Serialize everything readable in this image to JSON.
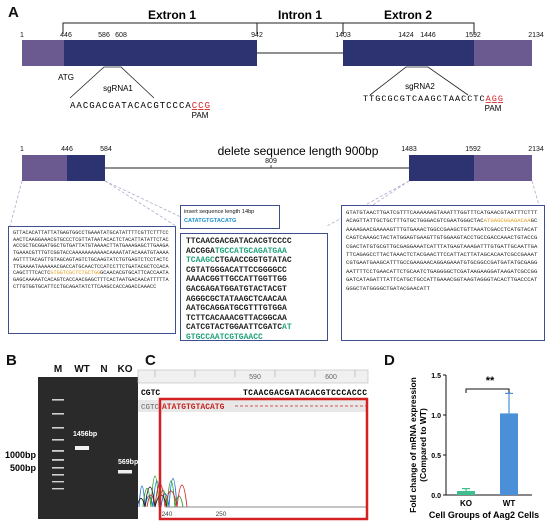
{
  "panels": {
    "a": "A",
    "b": "B",
    "c": "C",
    "d": "D"
  },
  "gene": {
    "exon1": "Extron 1",
    "intron1": "Intron 1",
    "exon2": "Extron 2",
    "ticks": [
      "1",
      "446",
      "586",
      "608",
      "942",
      "1403",
      "1424",
      "1446",
      "1592",
      "2134"
    ],
    "atg": "ATG",
    "sgrna1": {
      "name": "sgRNA1",
      "seq": "AACGACGATACACGTCCCA",
      "pam_seq": "CCG",
      "pam": "PAM"
    },
    "sgrna2": {
      "name": "sgRNA2",
      "seq": "TTGCGCGTCAAGCTAACCTC",
      "pam_seq": "AGG",
      "pam": "PAM"
    }
  },
  "deletion": {
    "label": "delete sequence length 900bp",
    "ticks": [
      "1",
      "446",
      "584",
      "809",
      "1483",
      "1592",
      "2134"
    ],
    "insert_label": "insert sequence length 14bp",
    "insert_seq": "CATATGTGTACATG"
  },
  "seq_left": {
    "text": "GTTACACATTATTATGAGTGGCCTGAAATATGCATATTTTCGTTCTTTCCAACTCAAGGAAACGTGCCCTCGTTATAATACACTCTACATTATATTCTACACCGCTGCGGATGGCTGTGATTATGTAAAACTTATGAAAGAGCTTGAAGATGAAACGTTTGTCGGTACCAAAAAAAAAAACAAAATATACAAATGTAAAAAGTTTTACAGTTGTAGCAGTAGTCTGCAAGTATCTGTGAGTCTCCTACTCTTGAAAATAAAAAACGACCATGCAACTCCATCCTTCTGATACGCTCCACACAGCTTTCACTC",
    "orange": "GTGGTCGCTCTGCTGG",
    "rest": "GCAACACGTGCATTCACCAATAGAGCAAAAATCACAGTCACCAACGAGCTTTCACTAATGACAACATTTTTACTTGTGGTGCATTCCTGCAGATATCTTCAAGCCACCAGACCAAACC"
  },
  "seq_mid": {
    "l1": "TTCAACGACGATACACGTCCCC",
    "l2a": "ACCGGA",
    "l2b": "TGCCATGCAGATGAA",
    "l3a": "TCAAGC",
    "l3b": "CTGAACCGGTGTATAC",
    "l4": "CGTATGGGACATTCCGGGGCC",
    "l5": "AAAACGGTTGCCATTGGTTGG",
    "l6": "GACGAGATGGATGTACTACGT",
    "l7": "AGGGCGCTATAAGCTCAACAA",
    "l8": "AATGCAGGATGCGTTTGTGGA",
    "l9": "TCTTCACAAACGTTACGGCAA",
    "l10a": "CATCGTACTGGAATTCGATC",
    "l10b": "AT",
    "l11": "GTGCCAATCGTGAACC"
  },
  "seq_right": {
    "pre": "GTATGTAACTTGATCGTTTCAAAAAAGTAAATTTGGTTTCATGAACGTAATTTCTTTACAGTTATTGCTGCTTTGTGCTGGGACGTCGAATGGGCTAC",
    "orange": "ATGAGCGGAGACAA",
    "post": "GCAAAAGAACGAAAAGTTTGTGAAACTGGCCGAAGCTGTTAAATCGACCTCATGTACATCAGTCAAAGCTACTATGGAGTGAAGTTGTGGAAGTACCTGCCGACCAAACTGTACCGCGACTATGTGCGTTGCGAGGAAATCATTTATGAGTAAAGATTTGTGATTGCAATTGATTCAGAGCCTTACTAAACTCTACGAACTTCCATTACTTATAGCACAATCGCCGAAATCGTGAATGAAGCATTTGCCGAAGAACAGGAGAAATGTGCGGCCGATGATATGCGAGGAATTTTCCTGAACATTCTGCAATCTGAGGGGCTCGATAAGAAGGATAAGATCGCCGGGATCATAGATTTATTCATGCTGCCATTGAAACGGTAAGTAGGGTACACTTGACCCATGGGCTATGGGGCTGATACGAACATT"
  },
  "gel": {
    "lanes": [
      "M",
      "WT",
      "N",
      "KO"
    ],
    "markers": [
      "1000bp",
      "500bp"
    ],
    "bands": [
      "1456bp",
      "569bp"
    ]
  },
  "chroma": {
    "ref_prefix": "CGTC",
    "ref_seq": "TCAACGACGATACACGTCCCACCC",
    "ko_prefix": "CGTC",
    "ko_ins": "ATATGTGTACATG",
    "pos_top": [
      "590",
      "600"
    ],
    "pos_bottom": [
      "240",
      "250"
    ]
  },
  "chart_data": {
    "type": "bar",
    "categories": [
      "KO",
      "WT"
    ],
    "values": [
      0.05,
      1.02
    ],
    "errors": [
      0.03,
      0.25
    ],
    "ylim": [
      0,
      1.5
    ],
    "yticks": [
      "0.0",
      "0.5",
      "1.0",
      "1.5"
    ],
    "ylabel": "Fold change of mRNA expression\n(Compared to WT)",
    "xlabel": "Cell Groups of Aag2 Cells",
    "significance": "**",
    "colors": [
      "#3fbf8f",
      "#4a8fd8"
    ]
  }
}
